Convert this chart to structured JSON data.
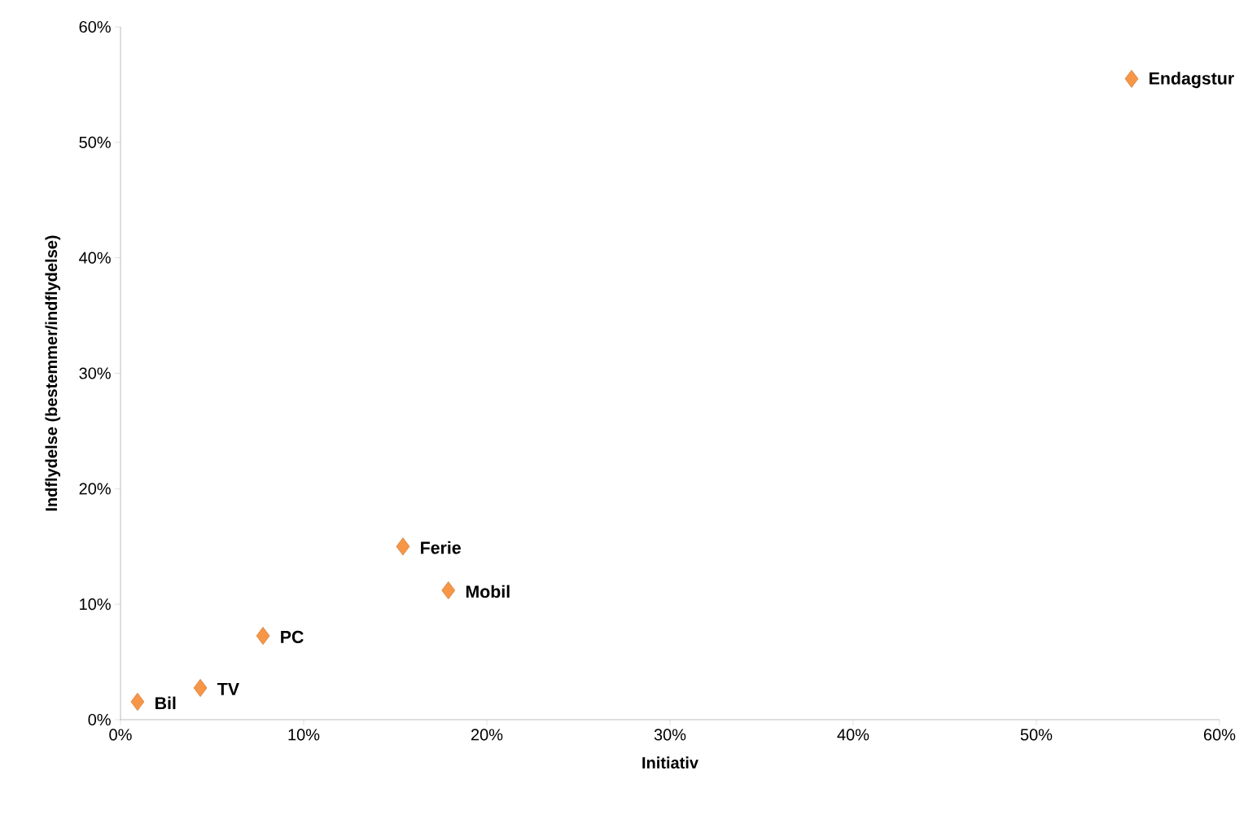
{
  "chart_data": {
    "type": "scatter",
    "xlabel": "Initiativ",
    "ylabel": "Indflydelse (bestemmer/indflydelse)",
    "x": [
      0.93,
      4.36,
      7.78,
      15.42,
      17.9,
      55.2
    ],
    "values": [
      1.55,
      2.75,
      7.26,
      15.0,
      11.2,
      55.5
    ],
    "color": "#f79646",
    "marker": "diamond",
    "xlim": [
      0,
      60
    ],
    "ylim": [
      0,
      60
    ],
    "xticks": [
      {
        "value": 0,
        "label": "0%"
      },
      {
        "value": 10,
        "label": "10%"
      },
      {
        "value": 20,
        "label": "20%"
      },
      {
        "value": 30,
        "label": "30%"
      },
      {
        "value": 40,
        "label": "40%"
      },
      {
        "value": 50,
        "label": "50%"
      },
      {
        "value": 60,
        "label": "60%"
      }
    ],
    "yticks": [
      {
        "value": 0,
        "label": "0%"
      },
      {
        "value": 10,
        "label": "10%"
      },
      {
        "value": 20,
        "label": "20%"
      },
      {
        "value": 30,
        "label": "30%"
      },
      {
        "value": 40,
        "label": "40%"
      },
      {
        "value": 50,
        "label": "50%"
      },
      {
        "value": 60,
        "label": "60%"
      }
    ],
    "annotations": [
      {
        "text": "Bil",
        "x": 0.93,
        "y": 1.55
      },
      {
        "text": "TV",
        "x": 4.36,
        "y": 2.75
      },
      {
        "text": "PC",
        "x": 7.78,
        "y": 7.26
      },
      {
        "text": "Ferie",
        "x": 15.42,
        "y": 15.0
      },
      {
        "text": "Mobil",
        "x": 17.9,
        "y": 11.2
      },
      {
        "text": "Endagstur",
        "x": 55.2,
        "y": 55.5
      }
    ]
  }
}
